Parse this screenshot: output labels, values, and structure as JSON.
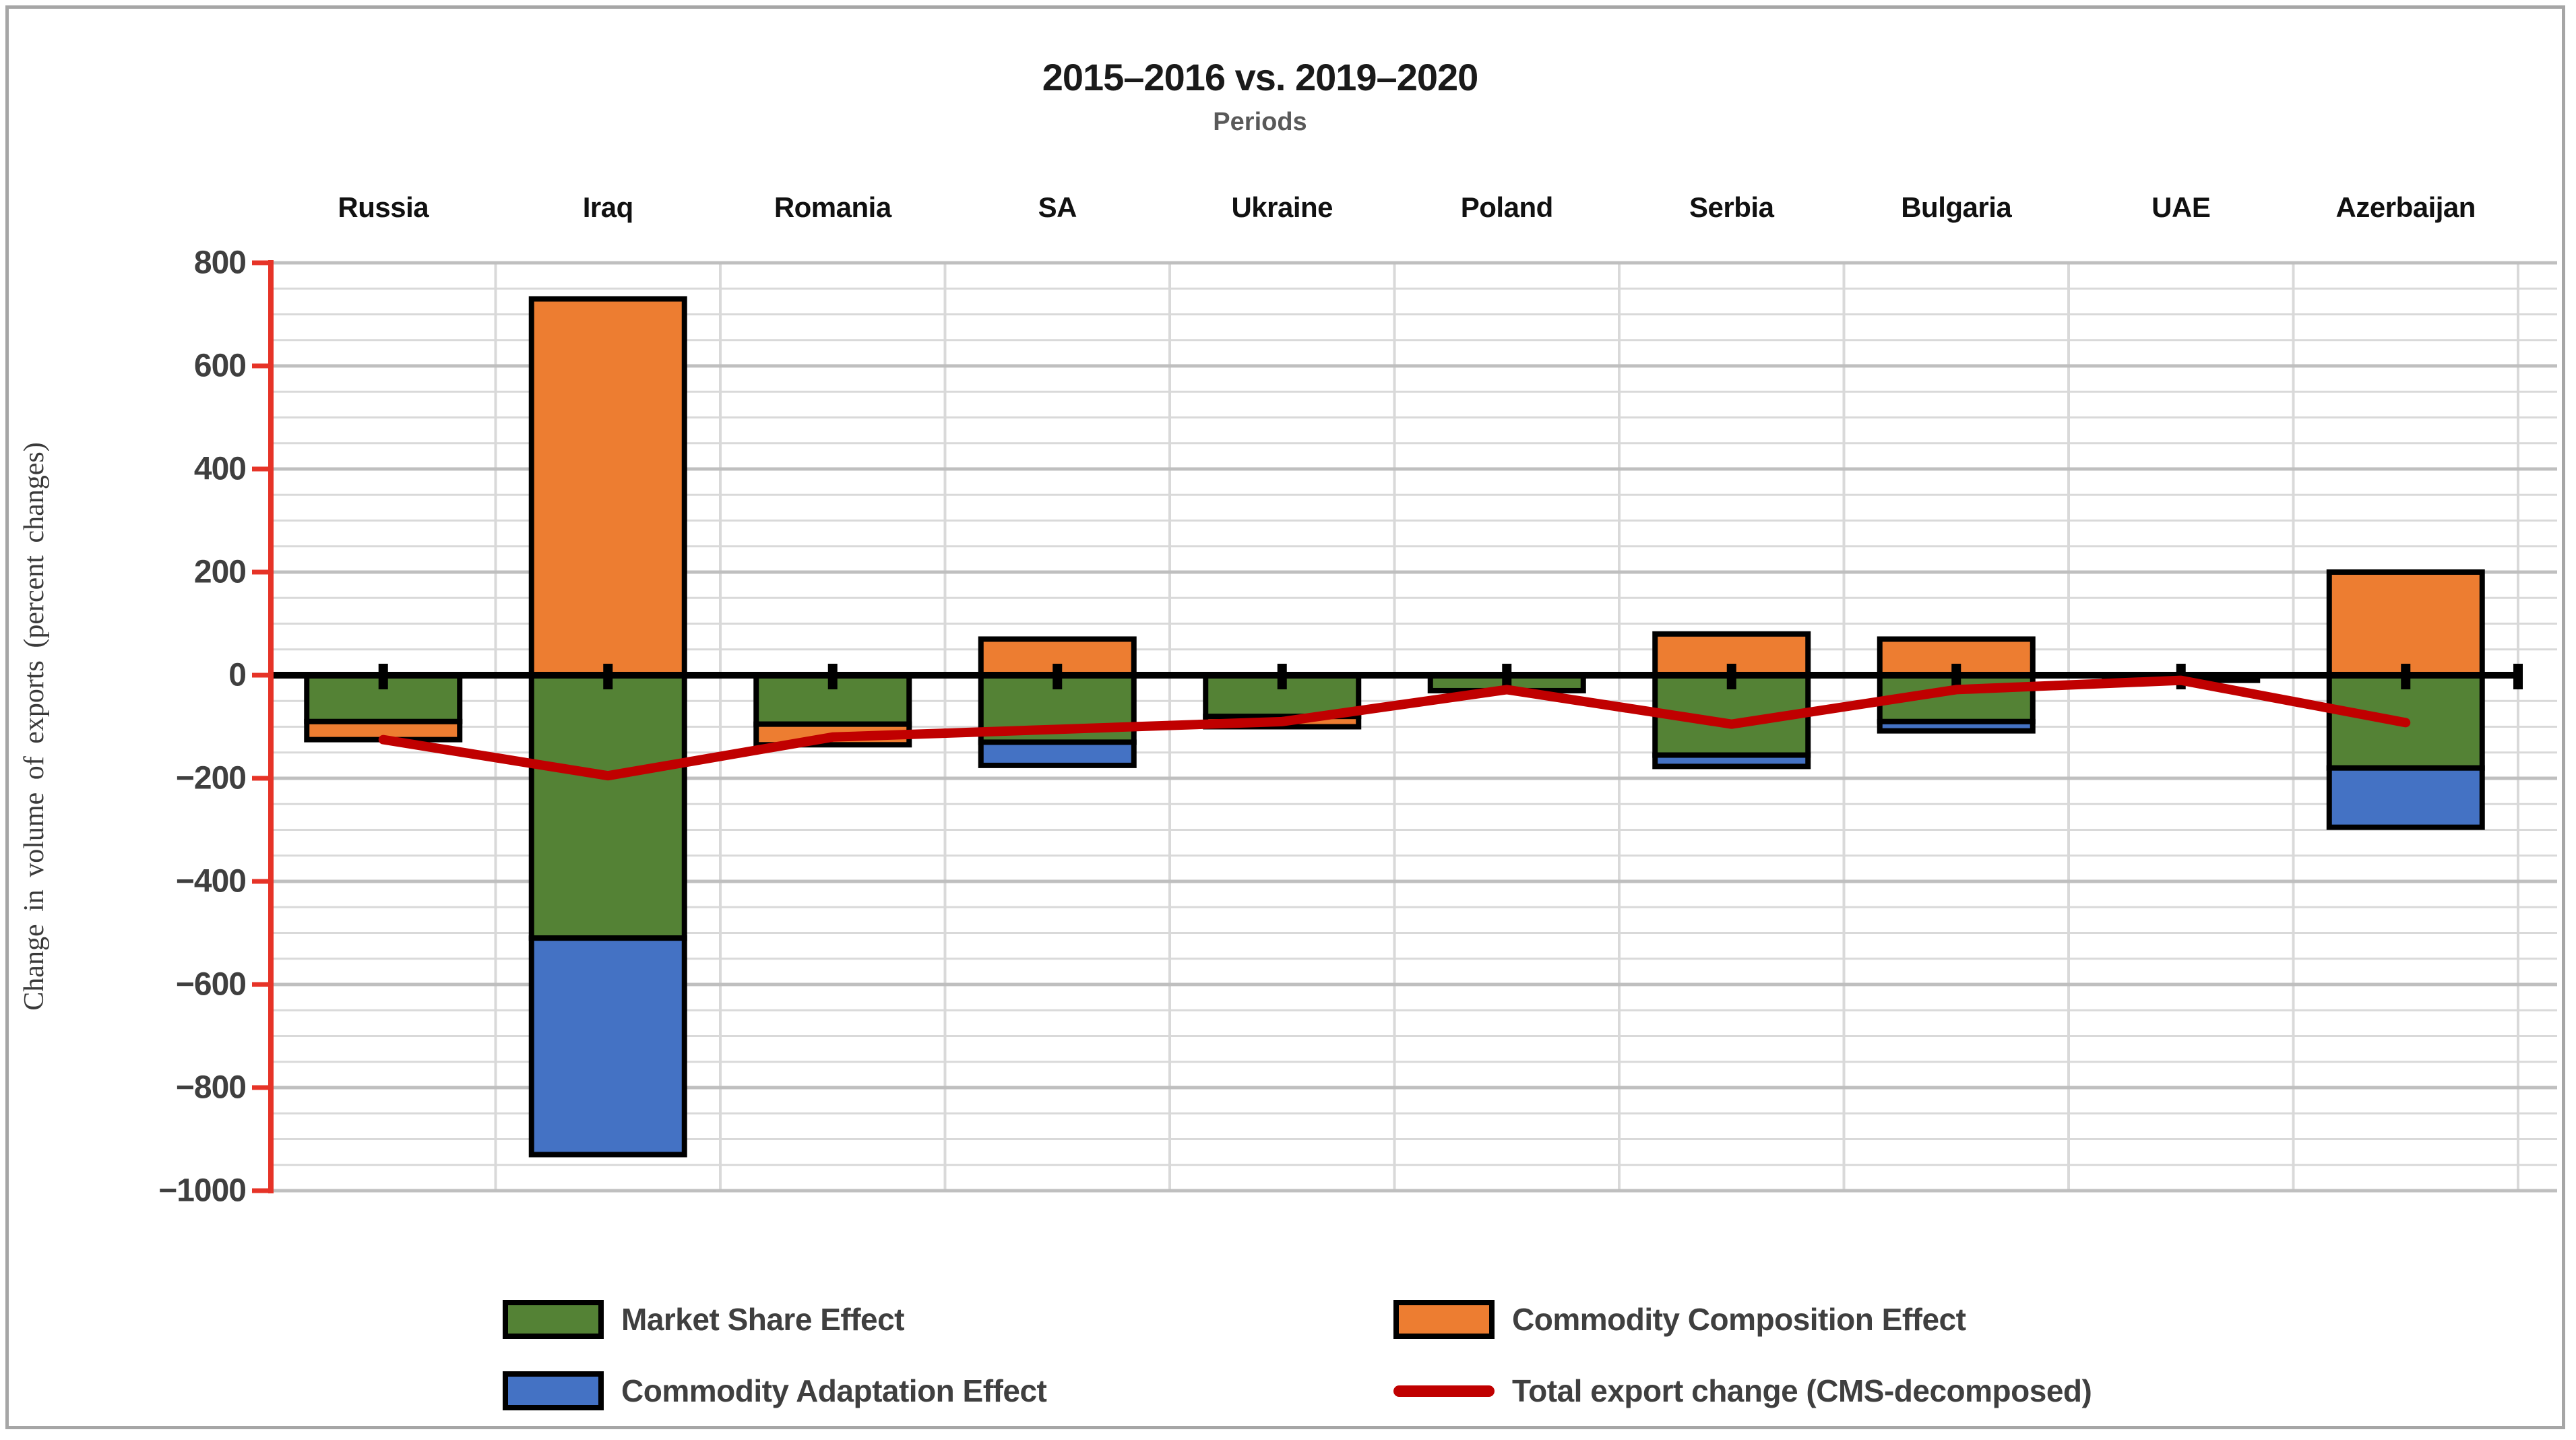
{
  "header": {
    "title": "2015–2016 vs. 2019–2020",
    "subtitle": "Periods"
  },
  "y_axis": {
    "title": "Change in volume of exports (percent changes)",
    "min": -1000,
    "max": 800,
    "major_step": 200,
    "minor_step": 50,
    "tick_labels": [
      "800",
      "600",
      "400",
      "200",
      "0",
      "−200",
      "−400",
      "−600",
      "−800",
      "−1000"
    ]
  },
  "legend": {
    "items": [
      {
        "label": "Market Share Effect",
        "swatch": "bar",
        "series": 0
      },
      {
        "label": "Commodity Adaptation Effect",
        "swatch": "bar",
        "series": 2
      },
      {
        "label": "Commodity Composition Effect",
        "swatch": "bar",
        "series": 1
      },
      {
        "label": "Total export change (CMS-decomposed)",
        "swatch": "line",
        "series": 3
      }
    ]
  },
  "colors": {
    "background": "#FFFFFF",
    "figure_border": "#A6A6A6",
    "y_axis_red": "#E63327",
    "zero_axis": "#000000",
    "grid_minor": "#D9D9D9",
    "grid_major": "#BFBFBF",
    "title_text": "#1A1A1A",
    "subtitle_text": "#595959",
    "tick_text": "#3F3F3F"
  },
  "chart_data": {
    "type": "bar",
    "subtype": "stacked-bar-with-line",
    "categories": [
      "Russia",
      "Iraq",
      "Romania",
      "SA",
      "Ukraine",
      "Poland",
      "Serbia",
      "Bulgaria",
      "UAE",
      "Azerbaijan"
    ],
    "series": [
      {
        "name": "Market Share Effect",
        "type": "bar",
        "color": "#548235",
        "values": [
          -90,
          -510,
          -95,
          -130,
          -80,
          -30,
          -155,
          -90,
          -10,
          -180
        ]
      },
      {
        "name": "Commodity Composition Effect",
        "type": "bar",
        "color": "#ED7D31",
        "values": [
          -35,
          730,
          -40,
          70,
          -20,
          0,
          80,
          70,
          0,
          200
        ]
      },
      {
        "name": "Commodity Adaptation Effect",
        "type": "bar",
        "color": "#4472C4",
        "values": [
          0,
          -420,
          0,
          -45,
          0,
          0,
          -22,
          -18,
          0,
          -115
        ]
      },
      {
        "name": "Total export change (CMS-decomposed)",
        "type": "line",
        "color": "#C00000",
        "values": [
          -125,
          -195,
          -120,
          -105,
          -90,
          -28,
          -95,
          -28,
          -10,
          -92
        ]
      }
    ],
    "title": "2015–2016 vs. 2019–2020",
    "subtitle": "Periods",
    "xlabel": "",
    "ylabel": "Change in volume of exports (percent changes)",
    "ylim": [
      -1000,
      800
    ],
    "grid": true,
    "legend_position": "bottom"
  }
}
